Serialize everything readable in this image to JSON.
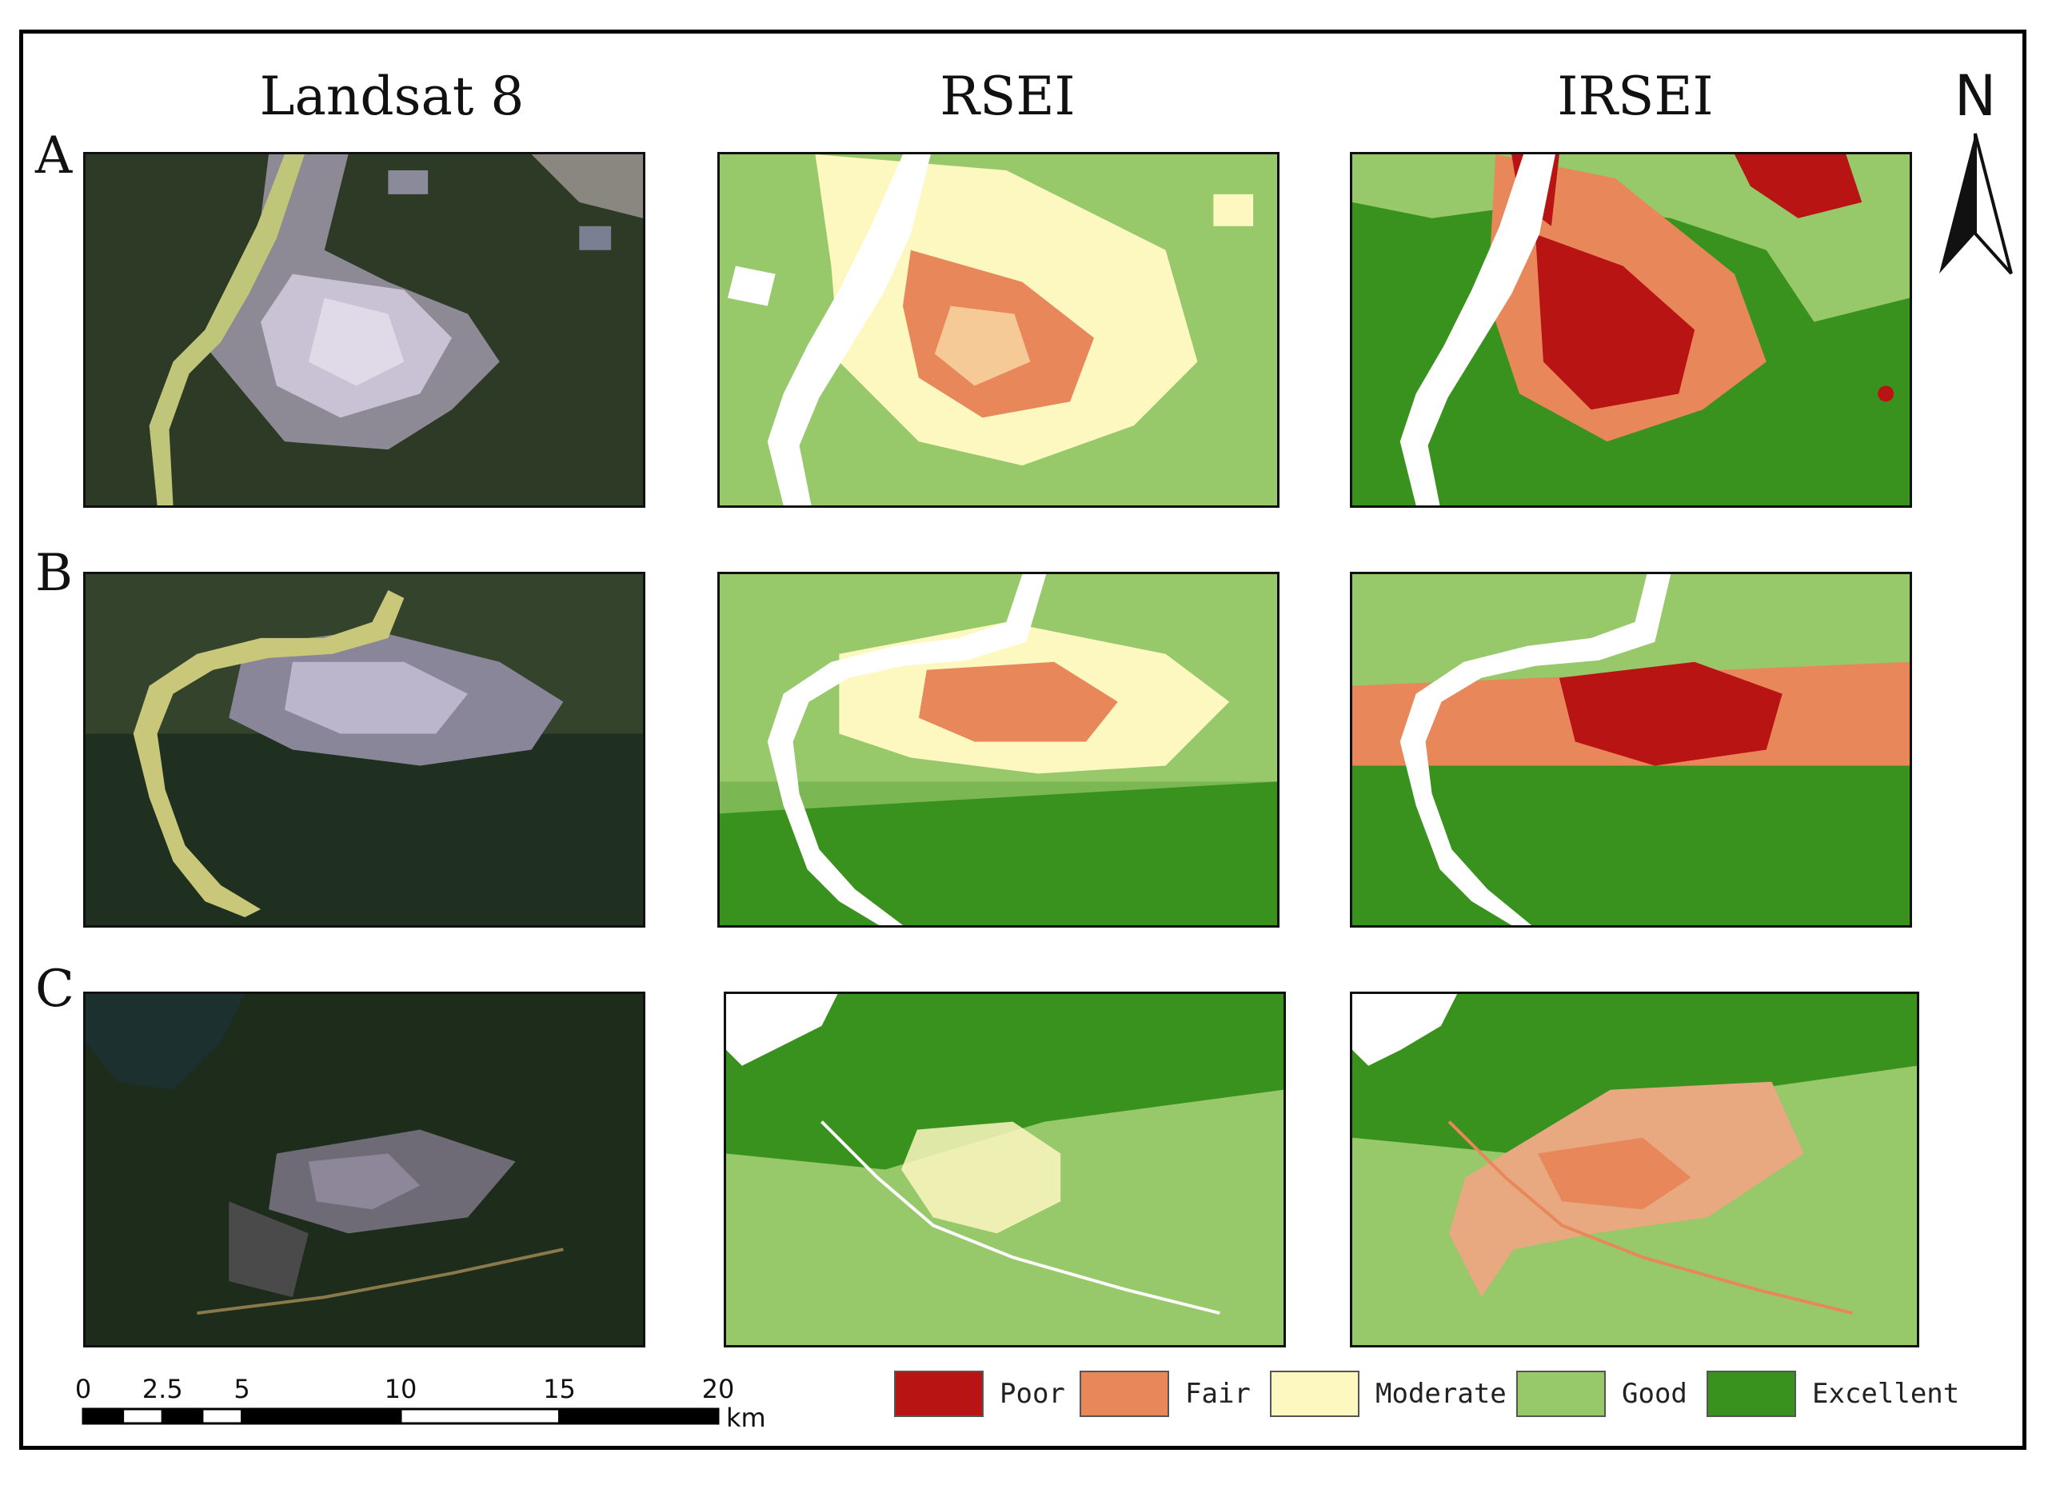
{
  "figure": {
    "column_titles": [
      "Landsat 8",
      "RSEI",
      "IRSEI"
    ],
    "row_labels": [
      "A",
      "B",
      "C"
    ],
    "north_label": "N"
  },
  "scale_bar": {
    "ticks": [
      "0",
      "2.5",
      "5",
      "10",
      "15",
      "20"
    ],
    "tick_values": [
      0,
      2.5,
      5,
      10,
      15,
      20
    ],
    "unit": "km"
  },
  "legend": {
    "items": [
      {
        "label": "Poor",
        "color": "#b81414"
      },
      {
        "label": "Fair",
        "color": "#e8875a"
      },
      {
        "label": "Moderate",
        "color": "#fdf7c0"
      },
      {
        "label": "Good",
        "color": "#97c86a"
      },
      {
        "label": "Excellent",
        "color": "#3a921e"
      }
    ]
  },
  "colors": {
    "water": "#ffffff",
    "landsat_forest": "#2a3a26",
    "landsat_urban": "#b8b2c8",
    "landsat_river": "#c9c87a"
  }
}
